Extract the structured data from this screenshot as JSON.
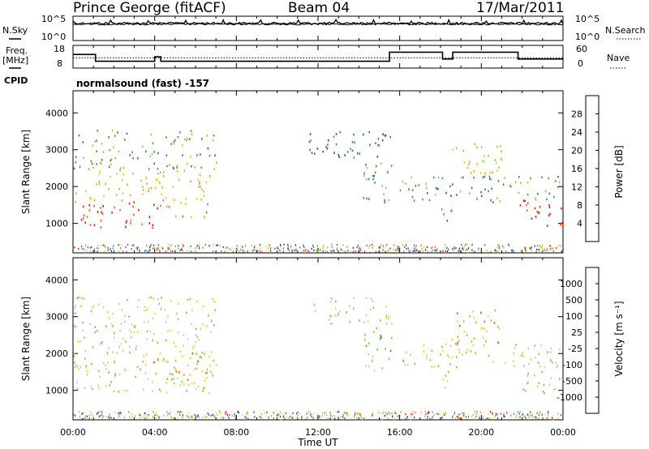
{
  "header": {
    "station": "Prince George (fitACF)",
    "beam": "Beam 04",
    "date": "17/Mar/2011"
  },
  "side_labels": {
    "nsky": "N.Sky",
    "freq": "Freq.",
    "freq_unit": "[MHz]",
    "cpid": "CPID",
    "nsearch": "N.Search",
    "nave": "Nave"
  },
  "cpid_text": "normalsound (fast) -157",
  "colors": {
    "power_scale": [
      "#1a1acc",
      "#2f4fa3",
      "#3a7a7a",
      "#4c9a55",
      "#a0c83a",
      "#e0d020",
      "#f0a020",
      "#f06020",
      "#e02020"
    ],
    "velocity_scale": [
      "#2a2ad0",
      "#2a6a8a",
      "#3aa040",
      "#7ad040",
      "#c8c8c0",
      "#f0d040",
      "#f0a020",
      "#f06010",
      "#e01010"
    ]
  },
  "chart_data": [
    {
      "type": "line",
      "panel": "noise",
      "left_axis_ticks": [
        "10^5",
        "10^0"
      ],
      "right_axis_ticks": [
        "10^5",
        "10^0"
      ],
      "left_label": "N.Sky",
      "right_label": "N.Search"
    },
    {
      "type": "line",
      "panel": "frequency / nave",
      "left_axis_ticks": [
        "18",
        "8"
      ],
      "right_axis_ticks": [
        "60",
        "0"
      ],
      "freq_mhz": {
        "x": [
          0,
          1.1,
          1.1,
          4.0,
          4.0,
          4.3,
          4.3,
          15.5,
          15.5,
          18.1,
          18.1,
          18.6,
          18.6,
          21.8,
          21.8,
          24
        ],
        "y": [
          14,
          14,
          11,
          11,
          13,
          13,
          11,
          11,
          15,
          15,
          12,
          12,
          15,
          15,
          12,
          12
        ]
      },
      "nave_dotted_level": 12.5
    },
    {
      "type": "heatmap",
      "panel": "power",
      "ylabel": "Slant Range [km]",
      "yticks": [
        1000,
        2000,
        3000,
        4000
      ],
      "ylim": [
        200,
        4600
      ],
      "xlim": [
        0,
        24
      ],
      "colorbar_label": "Power [dB]",
      "colorbar_ticks": [
        "28",
        "24",
        "20",
        "16",
        "12",
        "8",
        "4"
      ],
      "blobs": [
        {
          "t0": 0.0,
          "t1": 1.1,
          "r0": 950,
          "r1": 1550,
          "level": 8
        },
        {
          "t0": 0.0,
          "t1": 1.1,
          "r0": 1550,
          "r1": 2000,
          "level": 5
        },
        {
          "t0": 1.1,
          "t1": 4.2,
          "r0": 900,
          "r1": 1650,
          "level": 8
        },
        {
          "t0": 1.1,
          "t1": 6.7,
          "r0": 1650,
          "r1": 2500,
          "level": 5
        },
        {
          "t0": 4.2,
          "t1": 6.7,
          "r0": 1200,
          "r1": 1700,
          "level": 6
        },
        {
          "t0": 0.0,
          "t1": 7.0,
          "r0": 2500,
          "r1": 3550,
          "level": 3
        },
        {
          "t0": 11.5,
          "t1": 15.6,
          "r0": 2800,
          "r1": 3550,
          "level": 2
        },
        {
          "t0": 14.2,
          "t1": 15.6,
          "r0": 1550,
          "r1": 2800,
          "level": 3
        },
        {
          "t0": 16.0,
          "t1": 24.0,
          "r0": 1600,
          "r1": 2300,
          "level": 3
        },
        {
          "t0": 18.0,
          "t1": 18.5,
          "r0": 1100,
          "r1": 1900,
          "level": 7
        },
        {
          "t0": 18.5,
          "t1": 21.0,
          "r0": 2300,
          "r1": 3200,
          "level": 5
        },
        {
          "t0": 21.8,
          "t1": 24.0,
          "r0": 950,
          "r1": 1700,
          "level": 8
        }
      ]
    },
    {
      "type": "heatmap",
      "panel": "velocity",
      "ylabel": "Slant Range [km]",
      "yticks": [
        1000,
        2000,
        3000,
        4000
      ],
      "ylim": [
        200,
        4600
      ],
      "xlim": [
        0,
        24
      ],
      "xticks": [
        "00:00",
        "04:00",
        "08:00",
        "12:00",
        "16:00",
        "20:00",
        "00:00"
      ],
      "xlabel": "Time UT",
      "colorbar_label": "Velocity [m s⁻¹]",
      "colorbar_ticks": [
        "1000",
        "500",
        "100",
        "25",
        "-25",
        "-100",
        "-500",
        "-1000"
      ],
      "blobs": [
        {
          "t0": 0.0,
          "t1": 7.0,
          "r0": 950,
          "r1": 2500,
          "level": 4
        },
        {
          "t0": 0.0,
          "t1": 7.0,
          "r0": 2500,
          "r1": 3550,
          "level": 4
        },
        {
          "t0": 3.9,
          "t1": 6.7,
          "r0": 1250,
          "r1": 2100,
          "level": 6
        },
        {
          "t0": 11.5,
          "t1": 15.6,
          "r0": 2800,
          "r1": 3550,
          "level": 4
        },
        {
          "t0": 14.2,
          "t1": 15.6,
          "r0": 1550,
          "r1": 2800,
          "level": 3
        },
        {
          "t0": 16.0,
          "t1": 24.0,
          "r0": 1600,
          "r1": 2300,
          "level": 4
        },
        {
          "t0": 18.0,
          "t1": 18.5,
          "r0": 1100,
          "r1": 1900,
          "level": 4
        },
        {
          "t0": 18.5,
          "t1": 21.0,
          "r0": 2300,
          "r1": 3200,
          "level": 6
        },
        {
          "t0": 21.8,
          "t1": 24.0,
          "r0": 950,
          "r1": 1700,
          "level": 4
        }
      ]
    }
  ]
}
